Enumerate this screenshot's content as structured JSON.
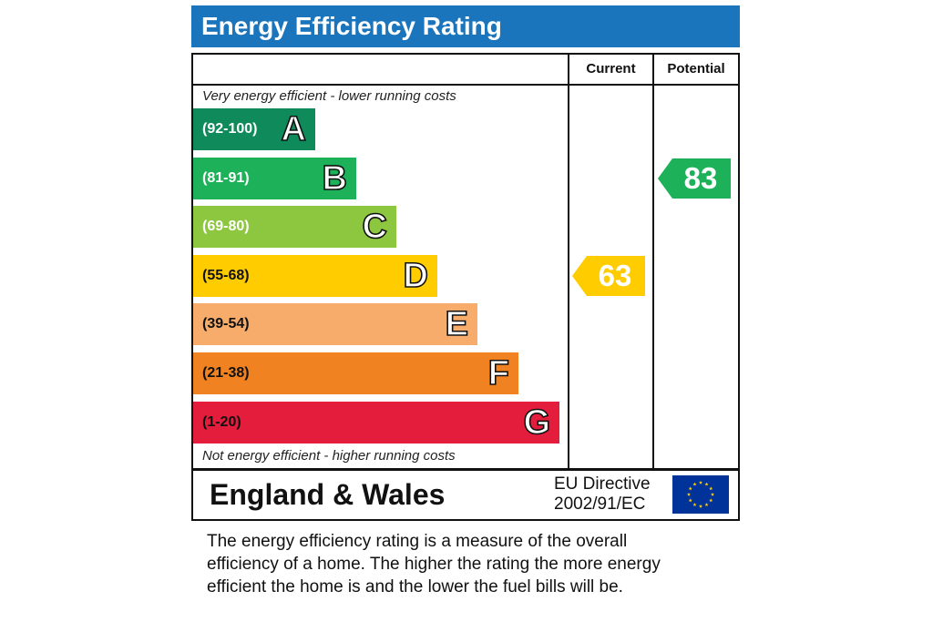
{
  "title": "Energy Efficiency Rating",
  "columns": {
    "current": "Current",
    "potential": "Potential"
  },
  "top_note": "Very energy efficient - lower running costs",
  "bottom_note": "Not energy efficient - higher running costs",
  "chart_data": {
    "type": "bar",
    "categories": [
      "A",
      "B",
      "C",
      "D",
      "E",
      "F",
      "G"
    ],
    "bands": [
      {
        "letter": "A",
        "range": "(92-100)",
        "color": "#0f8a5a"
      },
      {
        "letter": "B",
        "range": "(81-91)",
        "color": "#1db25a"
      },
      {
        "letter": "C",
        "range": "(69-80)",
        "color": "#8dc63f"
      },
      {
        "letter": "D",
        "range": "(55-68)",
        "color": "#ffcc00"
      },
      {
        "letter": "E",
        "range": "(39-54)",
        "color": "#f7ac6b"
      },
      {
        "letter": "F",
        "range": "(21-38)",
        "color": "#f08222"
      },
      {
        "letter": "G",
        "range": "(1-20)",
        "color": "#e31d3b"
      }
    ],
    "current": {
      "value": "63",
      "band": "D",
      "color": "#ffcc00"
    },
    "potential": {
      "value": "83",
      "band": "B",
      "color": "#1db25a"
    }
  },
  "footer": {
    "region": "England & Wales",
    "directive_line1": "EU Directive",
    "directive_line2": "2002/91/EC",
    "flag_icon": "eu-flag-icon"
  },
  "description_lines": [
    "The energy efficiency rating is a measure of the overall",
    "efficiency of a home.  The higher the rating the more energy",
    "efficient the home is and the lower the fuel bills will be."
  ]
}
